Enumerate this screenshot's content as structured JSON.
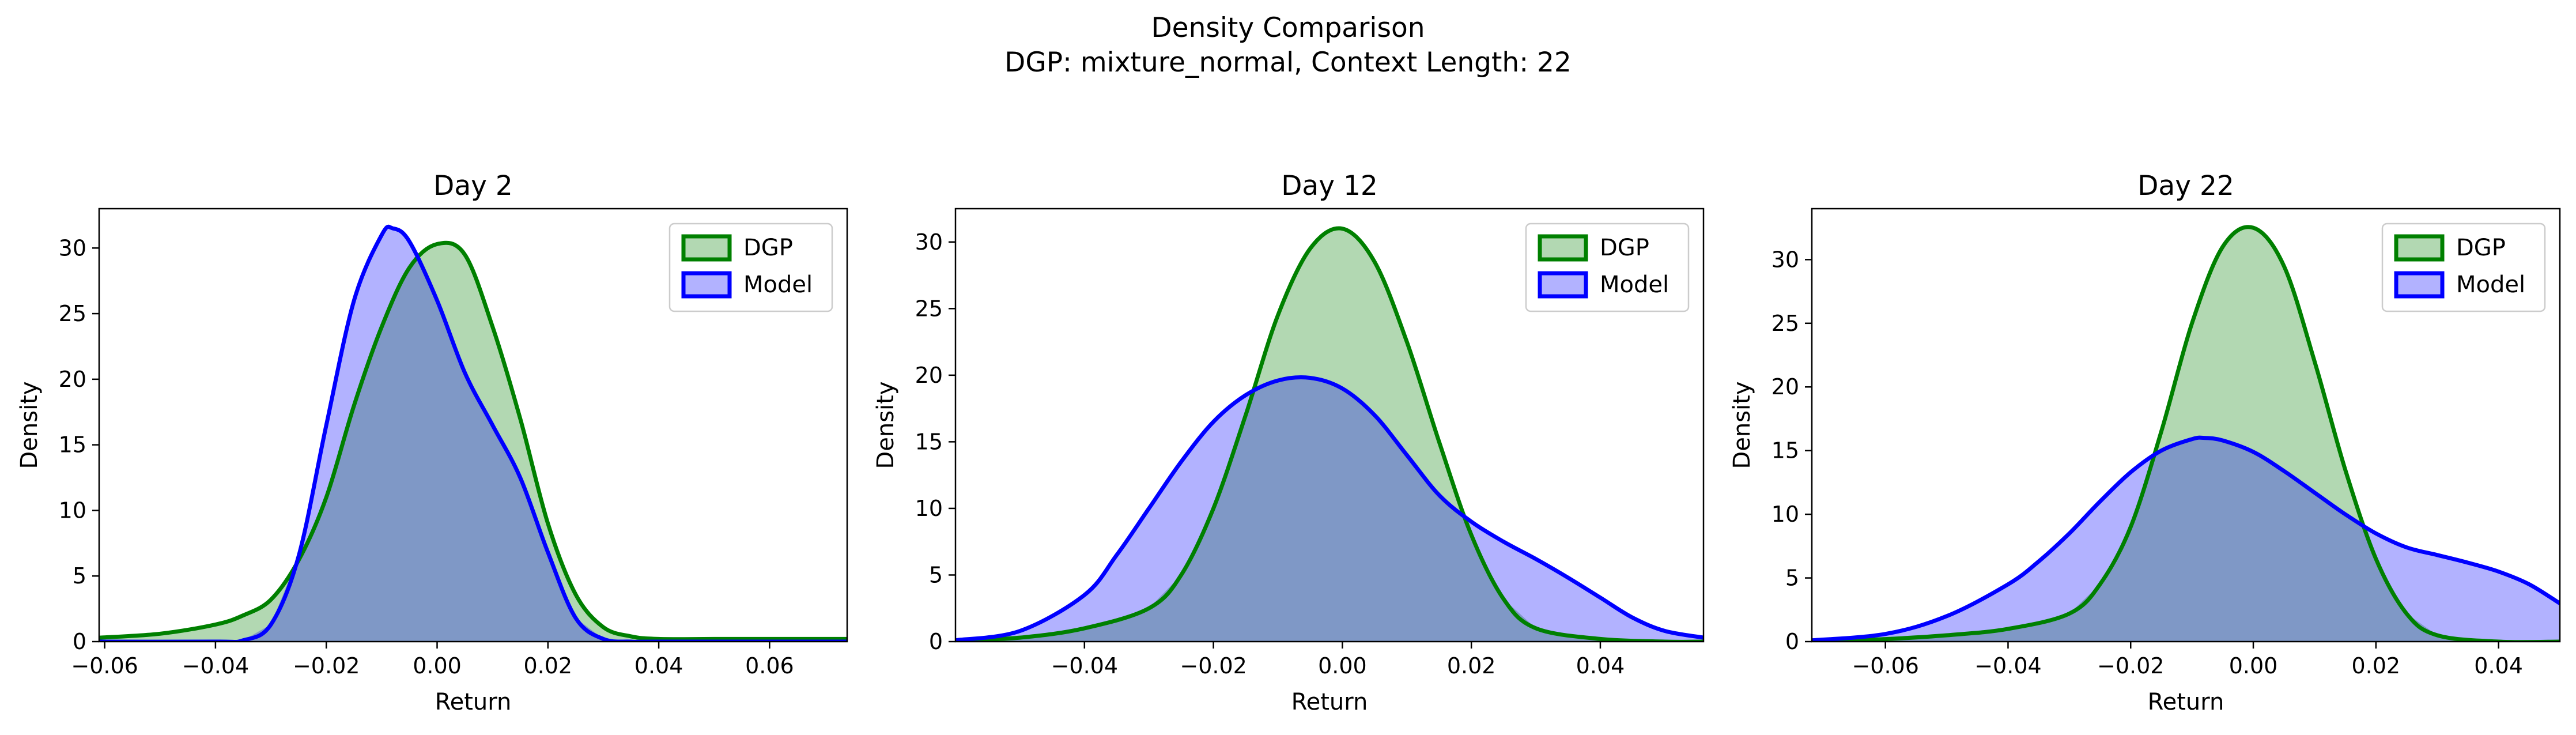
{
  "figure": {
    "title": "Density Comparison",
    "subtitle": "DGP: mixture_normal, Context Length: 22"
  },
  "colors": {
    "dgp_line": "#008000",
    "dgp_fill": "#b2d8b2",
    "model_line": "#0000ff",
    "model_fill": "#b2b2ff",
    "overlap_fill": "#7f98c6"
  },
  "chart_data": [
    {
      "type": "area",
      "title": "Day 2",
      "xlabel": "Return",
      "ylabel": "Density",
      "xlim": [
        -0.061,
        0.074
      ],
      "ylim": [
        0,
        33
      ],
      "xticks": [
        -0.06,
        -0.04,
        -0.02,
        0.0,
        0.02,
        0.04,
        0.06
      ],
      "xtick_labels": [
        "−0.06",
        "−0.04",
        "−0.02",
        "0.00",
        "0.02",
        "0.04",
        "0.06"
      ],
      "yticks": [
        0,
        5,
        10,
        15,
        20,
        25,
        30
      ],
      "ytick_labels": [
        "0",
        "5",
        "10",
        "15",
        "20",
        "25",
        "30"
      ],
      "legend": {
        "position": "top-right",
        "entries": [
          "DGP",
          "Model"
        ]
      },
      "series": [
        {
          "name": "DGP",
          "x": [
            -0.061,
            -0.05,
            -0.04,
            -0.035,
            -0.03,
            -0.025,
            -0.02,
            -0.015,
            -0.01,
            -0.005,
            0.0,
            0.005,
            0.01,
            0.015,
            0.02,
            0.025,
            0.03,
            0.035,
            0.04,
            0.05,
            0.06,
            0.074
          ],
          "y": [
            0.3,
            0.6,
            1.3,
            2.0,
            3.2,
            6.2,
            11.0,
            18.0,
            24.0,
            28.5,
            30.3,
            29.5,
            24.0,
            17.0,
            9.0,
            3.6,
            1.1,
            0.4,
            0.2,
            0.2,
            0.2,
            0.2
          ]
        },
        {
          "name": "Model",
          "x": [
            -0.061,
            -0.04,
            -0.035,
            -0.03,
            -0.025,
            -0.02,
            -0.015,
            -0.01,
            -0.008,
            -0.005,
            0.0,
            0.005,
            0.01,
            0.015,
            0.02,
            0.025,
            0.03,
            0.035,
            0.04,
            0.074
          ],
          "y": [
            0.0,
            0.0,
            0.1,
            1.3,
            6.5,
            16.5,
            26.0,
            31.0,
            31.5,
            30.5,
            26.0,
            20.5,
            16.5,
            12.5,
            6.8,
            1.8,
            0.2,
            0.0,
            0.0,
            0.0
          ]
        }
      ]
    },
    {
      "type": "area",
      "title": "Day 12",
      "xlabel": "Return",
      "ylabel": "Density",
      "xlim": [
        -0.06,
        0.056
      ],
      "ylim": [
        0,
        32.5
      ],
      "xticks": [
        -0.04,
        -0.02,
        0.0,
        0.02,
        0.04
      ],
      "xtick_labels": [
        "−0.04",
        "−0.02",
        "0.00",
        "0.02",
        "0.04"
      ],
      "yticks": [
        0,
        5,
        10,
        15,
        20,
        25,
        30
      ],
      "ytick_labels": [
        "0",
        "5",
        "10",
        "15",
        "20",
        "25",
        "30"
      ],
      "legend": {
        "position": "top-right",
        "entries": [
          "DGP",
          "Model"
        ]
      },
      "series": [
        {
          "name": "DGP",
          "x": [
            -0.06,
            -0.05,
            -0.04,
            -0.03,
            -0.025,
            -0.02,
            -0.015,
            -0.01,
            -0.005,
            0.0,
            0.005,
            0.01,
            0.015,
            0.02,
            0.025,
            0.03,
            0.04,
            0.05,
            0.056
          ],
          "y": [
            0.1,
            0.3,
            1.0,
            2.5,
            5.0,
            10.0,
            17.0,
            24.5,
            29.5,
            31.0,
            28.5,
            22.5,
            15.0,
            8.0,
            3.2,
            1.0,
            0.2,
            0.0,
            0.0
          ]
        },
        {
          "name": "Model",
          "x": [
            -0.06,
            -0.05,
            -0.04,
            -0.035,
            -0.03,
            -0.025,
            -0.02,
            -0.015,
            -0.01,
            -0.005,
            0.0,
            0.005,
            0.01,
            0.015,
            0.02,
            0.025,
            0.03,
            0.035,
            0.04,
            0.045,
            0.05,
            0.056
          ],
          "y": [
            0.1,
            0.8,
            3.5,
            6.5,
            10.0,
            13.5,
            16.5,
            18.5,
            19.6,
            19.8,
            19.0,
            17.0,
            14.0,
            11.0,
            9.0,
            7.5,
            6.2,
            4.8,
            3.3,
            1.8,
            0.8,
            0.3
          ]
        }
      ]
    },
    {
      "type": "area",
      "title": "Day 22",
      "xlabel": "Return",
      "ylabel": "Density",
      "xlim": [
        -0.072,
        0.05
      ],
      "ylim": [
        0,
        34
      ],
      "xticks": [
        -0.06,
        -0.04,
        -0.02,
        0.0,
        0.02,
        0.04
      ],
      "xtick_labels": [
        "−0.06",
        "−0.04",
        "−0.02",
        "0.00",
        "0.02",
        "0.04"
      ],
      "yticks": [
        0,
        5,
        10,
        15,
        20,
        25,
        30
      ],
      "ytick_labels": [
        "0",
        "5",
        "10",
        "15",
        "20",
        "25",
        "30"
      ],
      "legend": {
        "position": "top-right",
        "entries": [
          "DGP",
          "Model"
        ]
      },
      "series": [
        {
          "name": "DGP",
          "x": [
            -0.072,
            -0.06,
            -0.05,
            -0.04,
            -0.03,
            -0.025,
            -0.02,
            -0.015,
            -0.01,
            -0.005,
            0.0,
            0.005,
            0.01,
            0.015,
            0.02,
            0.025,
            0.03,
            0.04,
            0.05
          ],
          "y": [
            0.0,
            0.2,
            0.5,
            1.0,
            2.2,
            4.5,
            9.0,
            16.5,
            25.0,
            31.0,
            32.5,
            29.5,
            22.0,
            13.5,
            6.5,
            2.2,
            0.5,
            0.0,
            0.0
          ]
        },
        {
          "name": "Model",
          "x": [
            -0.072,
            -0.06,
            -0.05,
            -0.04,
            -0.035,
            -0.03,
            -0.025,
            -0.02,
            -0.015,
            -0.01,
            -0.008,
            -0.005,
            0.0,
            0.005,
            0.01,
            0.015,
            0.02,
            0.025,
            0.03,
            0.035,
            0.04,
            0.045,
            0.05
          ],
          "y": [
            0.1,
            0.6,
            2.0,
            4.5,
            6.3,
            8.5,
            11.0,
            13.3,
            15.0,
            15.9,
            16.0,
            15.8,
            14.9,
            13.4,
            11.7,
            10.0,
            8.5,
            7.4,
            6.8,
            6.2,
            5.5,
            4.5,
            3.0
          ]
        }
      ]
    }
  ]
}
